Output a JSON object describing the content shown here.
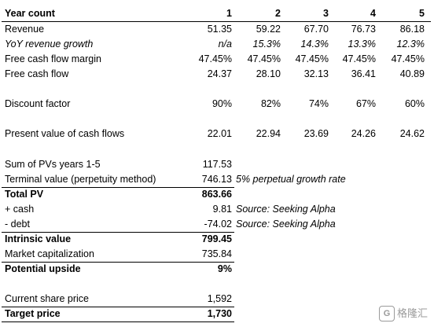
{
  "header": {
    "label": "Year count",
    "years": [
      "1",
      "2",
      "3",
      "4",
      "5"
    ]
  },
  "revenue": {
    "label": "Revenue",
    "values": [
      "51.35",
      "59.22",
      "67.70",
      "76.73",
      "86.18"
    ]
  },
  "yoy": {
    "label": "YoY revenue growth",
    "values": [
      "n/a",
      "15.3%",
      "14.3%",
      "13.3%",
      "12.3%"
    ]
  },
  "fcf_margin": {
    "label": "Free cash flow margin",
    "values": [
      "47.45%",
      "47.45%",
      "47.45%",
      "47.45%",
      "47.45%"
    ]
  },
  "fcf": {
    "label": "Free cash flow",
    "values": [
      "24.37",
      "28.10",
      "32.13",
      "36.41",
      "40.89"
    ]
  },
  "discount": {
    "label": "Discount factor",
    "values": [
      "90%",
      "82%",
      "74%",
      "67%",
      "60%"
    ]
  },
  "pv": {
    "label": "Present value of cash flows",
    "values": [
      "22.01",
      "22.94",
      "23.69",
      "24.26",
      "24.62"
    ]
  },
  "summary": {
    "sum_pv": {
      "label": "Sum of PVs years 1-5",
      "value": "117.53"
    },
    "terminal": {
      "label": "Terminal value (perpetuity method)",
      "value": "746.13",
      "note": "5% perpetual growth rate"
    },
    "total_pv": {
      "label": "Total PV",
      "value": "863.66"
    },
    "cash": {
      "label": "+ cash",
      "value": "9.81",
      "note": "Source: Seeking Alpha"
    },
    "debt": {
      "label": "- debt",
      "value": "-74.02",
      "note": "Source: Seeking Alpha"
    },
    "intrinsic": {
      "label": "Intrinsic value",
      "value": "799.45"
    },
    "market_cap": {
      "label": "Market capitalization",
      "value": "735.84"
    },
    "upside": {
      "label": "Potential upside",
      "value": "9%"
    },
    "share_price": {
      "label": "Current share price",
      "value": "1,592"
    },
    "target": {
      "label": "Target price",
      "value": "1,730"
    }
  },
  "watermark": {
    "logo_glyph": "G",
    "text": "格隆汇"
  }
}
